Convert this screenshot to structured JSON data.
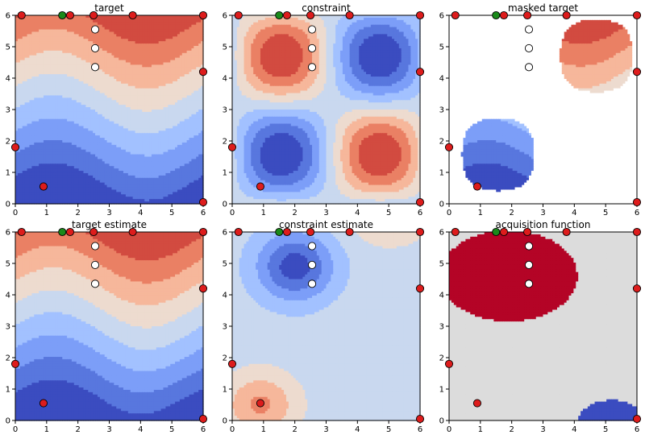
{
  "chart_data": {
    "type": "contour",
    "x_range": [
      0,
      6
    ],
    "y_range": [
      0,
      6
    ],
    "x_ticks": [
      0,
      1,
      2,
      3,
      4,
      5,
      6
    ],
    "y_ticks": [
      0,
      1,
      2,
      3,
      4,
      5,
      6
    ],
    "colormap": "coolwarm",
    "colors": {
      "feasible_marker": "#dd1c1c",
      "infeasible_marker": "#ffffff",
      "best_marker": "#1a8a1a",
      "masked_background": "#ffffff",
      "acq_high": "#b40426",
      "acq_low": "#3b4cc0",
      "acq_background": "#dcdcdc"
    },
    "panels": [
      {
        "id": "target",
        "title": "target",
        "field": "target"
      },
      {
        "id": "constraint",
        "title": "constraint",
        "field": "constraint"
      },
      {
        "id": "masked-target",
        "title": "masked target",
        "field": "masked"
      },
      {
        "id": "target-estimate",
        "title": "target estimate",
        "field": "target_est"
      },
      {
        "id": "constraint-estimate",
        "title": "constraint estimate",
        "field": "constraint_est"
      },
      {
        "id": "acquisition-function",
        "title": "acquisition function",
        "field": "acquisition"
      }
    ],
    "samples": {
      "red": [
        [
          0.2,
          6.0
        ],
        [
          1.75,
          6.0
        ],
        [
          2.5,
          6.0
        ],
        [
          3.75,
          6.0
        ],
        [
          6.0,
          6.0
        ],
        [
          6.0,
          4.2
        ],
        [
          0.0,
          1.8
        ],
        [
          0.9,
          0.55
        ],
        [
          6.0,
          0.05
        ]
      ],
      "green": [
        [
          1.5,
          6.0
        ]
      ],
      "white": [
        [
          2.55,
          5.55
        ],
        [
          2.55,
          4.95
        ],
        [
          2.55,
          4.35
        ]
      ]
    }
  }
}
